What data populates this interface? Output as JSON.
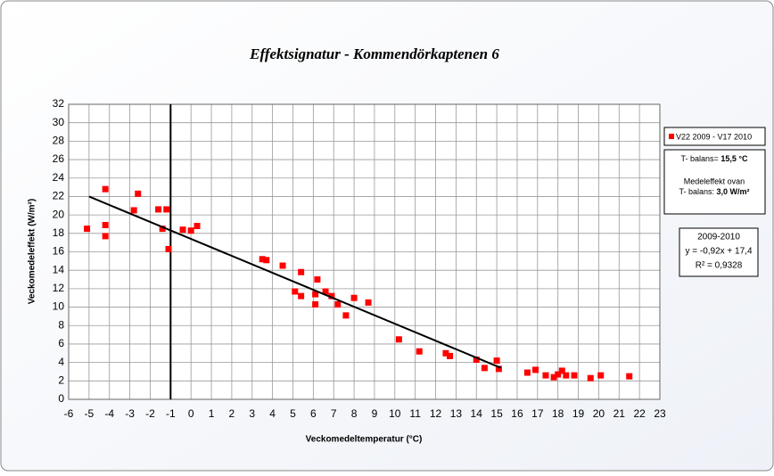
{
  "chart_data": {
    "type": "scatter",
    "title": "Effektsignatur - Kommendörkaptenen 6",
    "x_label": "Veckomedeltemperatur (°C)",
    "y_label": "Veckomedeleffekt (W/m²)",
    "xlim": [
      -6,
      23
    ],
    "ylim": [
      0,
      32
    ],
    "xticks": [
      -6,
      -5,
      -4,
      -3,
      -2,
      -1,
      0,
      1,
      2,
      3,
      4,
      5,
      6,
      7,
      8,
      9,
      10,
      11,
      12,
      13,
      14,
      15,
      16,
      17,
      18,
      19,
      20,
      21,
      22,
      23
    ],
    "yticks": [
      0,
      2,
      4,
      6,
      8,
      10,
      12,
      14,
      16,
      18,
      20,
      22,
      24,
      26,
      28,
      30,
      32
    ],
    "grid": true,
    "series": [
      {
        "name": "V22 2009 - V17 2010",
        "color": "#ff0000",
        "x": [
          -5.1,
          -4.2,
          -4.2,
          -4.2,
          -2.6,
          -2.8,
          -1.6,
          -1.4,
          -1.2,
          -1.1,
          -0.4,
          0.0,
          0.3,
          3.5,
          3.7,
          4.5,
          5.4,
          5.1,
          5.4,
          6.2,
          6.1,
          6.1,
          6.6,
          6.9,
          7.2,
          7.6,
          8.0,
          8.7,
          10.2,
          11.2,
          12.5,
          12.7,
          14.0,
          14.4,
          15.0,
          15.1,
          16.5,
          16.9,
          17.4,
          17.8,
          18.0,
          18.2,
          18.4,
          18.8,
          19.6,
          20.1,
          21.5
        ],
        "values": [
          18.5,
          22.8,
          18.9,
          17.7,
          22.3,
          20.5,
          20.6,
          18.5,
          20.6,
          16.3,
          18.4,
          18.3,
          18.8,
          15.2,
          15.1,
          14.5,
          13.8,
          11.7,
          11.2,
          13.0,
          11.4,
          10.3,
          11.7,
          11.2,
          10.3,
          9.1,
          11.0,
          10.5,
          6.5,
          5.2,
          5.0,
          4.7,
          4.3,
          3.4,
          4.2,
          3.3,
          2.9,
          3.2,
          2.6,
          2.4,
          2.7,
          3.1,
          2.6,
          2.6,
          2.3,
          2.6,
          2.5
        ]
      }
    ],
    "trendline": {
      "x": [
        -5,
        15.2
      ],
      "slope": -0.92,
      "intercept": 17.4,
      "color": "#000000"
    },
    "vline": -1,
    "annotations": {
      "balance_label": "T- balans=",
      "balance_value": "15,5 °C",
      "mean_label_1": "Medeleffekt ovan",
      "mean_label_2": "T- balans:",
      "mean_value": "3,0 W/m²",
      "fit_period": "2009-2010",
      "fit_equation": "y = -0,92x + 17,4",
      "fit_r2": "R² = 0,9328"
    }
  }
}
